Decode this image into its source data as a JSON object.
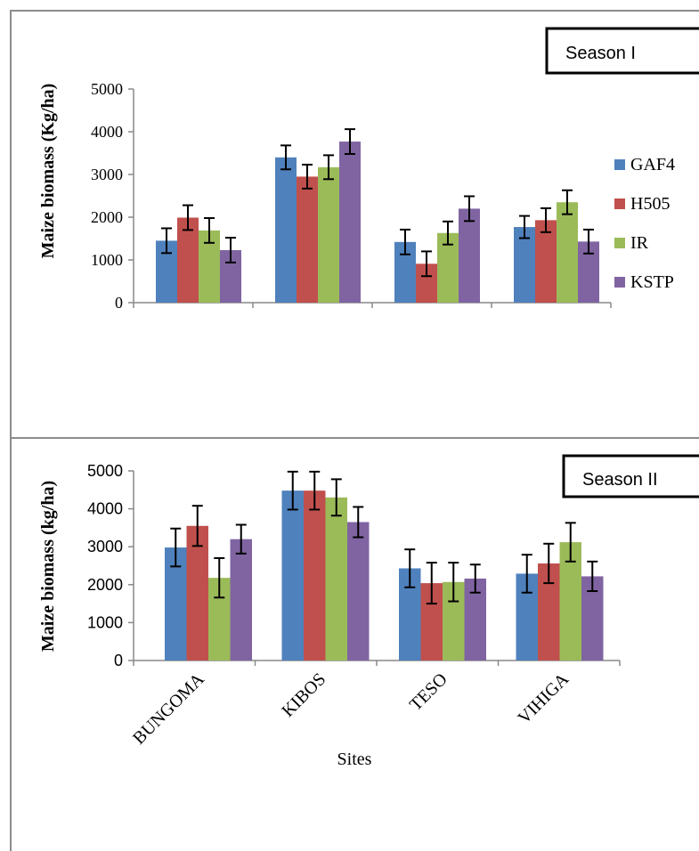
{
  "chart_data": [
    {
      "type": "bar",
      "panel_label": "Season I",
      "ylabel": "Maize biomass (Kg/ha)",
      "xlabel": "",
      "categories": [
        "BUNGOMA",
        "KIBOS",
        "TESO",
        "VIHIGA"
      ],
      "ylim": [
        0,
        5000
      ],
      "yticks": [
        0,
        1000,
        2000,
        3000,
        4000,
        5000
      ],
      "show_category_labels": false,
      "legend_position": "right",
      "grid": false,
      "series": [
        {
          "name": "GAF4",
          "color": "#4F81BD",
          "values": [
            1450,
            3400,
            1420,
            1770
          ],
          "errors": [
            290,
            280,
            290,
            260
          ]
        },
        {
          "name": "H505",
          "color": "#C0504D",
          "values": [
            1990,
            2950,
            910,
            1930
          ],
          "errors": [
            290,
            280,
            290,
            280
          ]
        },
        {
          "name": "IR",
          "color": "#9BBB59",
          "values": [
            1690,
            3170,
            1630,
            2350
          ],
          "errors": [
            290,
            280,
            270,
            280
          ]
        },
        {
          "name": "KSTP",
          "color": "#8064A2",
          "values": [
            1230,
            3770,
            2200,
            1430
          ],
          "errors": [
            290,
            290,
            290,
            280
          ]
        }
      ]
    },
    {
      "type": "bar",
      "panel_label": "Season II",
      "ylabel": "Maize biomass (kg/ha)",
      "xlabel": "Sites",
      "categories": [
        "BUNGOMA",
        "KIBOS",
        "TESO",
        "VIHIGA"
      ],
      "ylim": [
        0,
        5000
      ],
      "yticks": [
        0,
        1000,
        2000,
        3000,
        4000,
        5000
      ],
      "show_category_labels": true,
      "legend_position": "none",
      "grid": false,
      "series": [
        {
          "name": "GAF4",
          "color": "#4F81BD",
          "values": [
            2980,
            4480,
            2430,
            2290
          ],
          "errors": [
            500,
            500,
            500,
            500
          ]
        },
        {
          "name": "H505",
          "color": "#C0504D",
          "values": [
            3550,
            4480,
            2040,
            2560
          ],
          "errors": [
            530,
            500,
            540,
            520
          ]
        },
        {
          "name": "IR",
          "color": "#9BBB59",
          "values": [
            2180,
            4300,
            2070,
            3120
          ],
          "errors": [
            520,
            480,
            510,
            510
          ]
        },
        {
          "name": "KSTP",
          "color": "#8064A2",
          "values": [
            3200,
            3650,
            2160,
            2220
          ],
          "errors": [
            380,
            400,
            370,
            390
          ]
        }
      ]
    }
  ]
}
